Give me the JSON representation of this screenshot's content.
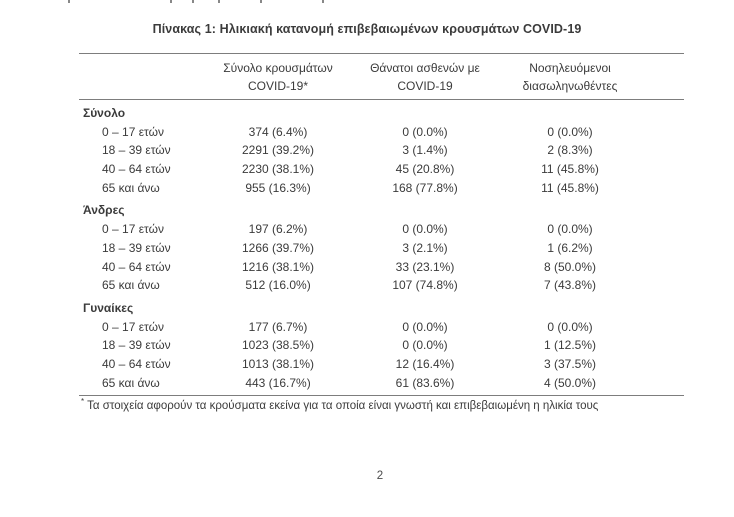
{
  "page": {
    "title": "Πίνακας 1: Ηλικιακή κατανομή επιβεβαιωμένων κρουσμάτων COVID-19",
    "footnote_marker": "*",
    "footnote_text": "Τα στοιχεία αφορούν τα κρούσματα εκείνα για τα οποία είναι γνωστή και επιβεβαιωμένη η ηλικία τους",
    "page_number": "2"
  },
  "table": {
    "column_headers": [
      {
        "line1": "Σύνολο κρουσμάτων",
        "line2": "COVID-19*"
      },
      {
        "line1": "Θάνατοι ασθενών με",
        "line2": "COVID-19"
      },
      {
        "line1": "Νοσηλευόμενοι",
        "line2": "διασωληνωθέντες"
      }
    ],
    "sections": [
      {
        "label": "Σύνολο",
        "rows": [
          {
            "label": "0 – 17 ετών",
            "cases": "374 (6.4%)",
            "deaths": "0 (0.0%)",
            "intubated": "0 (0.0%)"
          },
          {
            "label": "18 – 39 ετών",
            "cases": "2291 (39.2%)",
            "deaths": "3 (1.4%)",
            "intubated": "2 (8.3%)"
          },
          {
            "label": "40 – 64 ετών",
            "cases": "2230 (38.1%)",
            "deaths": "45 (20.8%)",
            "intubated": "11 (45.8%)"
          },
          {
            "label": "65 και άνω",
            "cases": "955 (16.3%)",
            "deaths": "168 (77.8%)",
            "intubated": "11 (45.8%)"
          }
        ]
      },
      {
        "label": "Άνδρες",
        "rows": [
          {
            "label": "0 – 17 ετών",
            "cases": "197 (6.2%)",
            "deaths": "0 (0.0%)",
            "intubated": "0 (0.0%)"
          },
          {
            "label": "18 – 39 ετών",
            "cases": "1266 (39.7%)",
            "deaths": "3 (2.1%)",
            "intubated": "1 (6.2%)"
          },
          {
            "label": "40 – 64 ετών",
            "cases": "1216 (38.1%)",
            "deaths": "33 (23.1%)",
            "intubated": "8 (50.0%)"
          },
          {
            "label": "65 και άνω",
            "cases": "512 (16.0%)",
            "deaths": "107 (74.8%)",
            "intubated": "7 (43.8%)"
          }
        ]
      },
      {
        "label": "Γυναίκες",
        "rows": [
          {
            "label": "0 – 17 ετών",
            "cases": "177 (6.7%)",
            "deaths": "0 (0.0%)",
            "intubated": "0 (0.0%)"
          },
          {
            "label": "18 – 39 ετών",
            "cases": "1023 (38.5%)",
            "deaths": "0 (0.0%)",
            "intubated": "1 (12.5%)"
          },
          {
            "label": "40 – 64 ετών",
            "cases": "1013 (38.1%)",
            "deaths": "12 (16.4%)",
            "intubated": "3 (37.5%)"
          },
          {
            "label": "65 και άνω",
            "cases": "443 (16.7%)",
            "deaths": "61 (83.6%)",
            "intubated": "4 (50.0%)"
          }
        ]
      }
    ]
  },
  "colors": {
    "text": "#3b3b3b",
    "rule": "#7d7d7d",
    "background": "#ffffff"
  }
}
